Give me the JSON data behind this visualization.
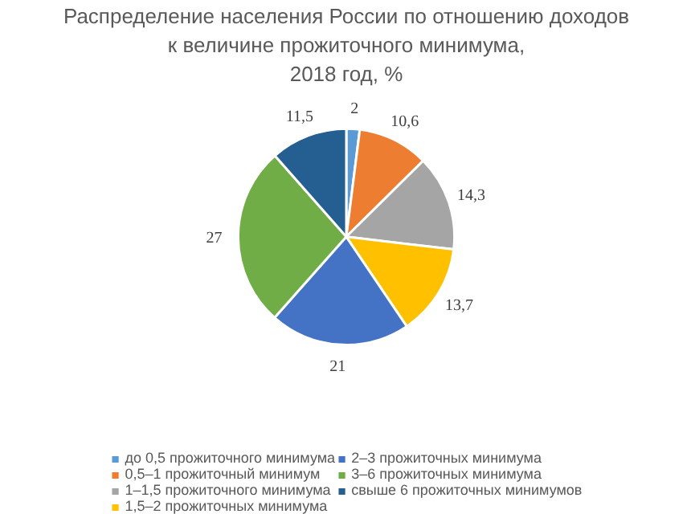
{
  "chart_data": {
    "type": "pie",
    "title": "Распределение населения России по отношению доходов\nк величине прожиточного минимума,\n2018 год, %",
    "categories": [
      "до 0,5 прожиточного минимума",
      "0,5–1 прожиточный минимум",
      "1–1,5 прожиточного минимума",
      "1,5–2 прожиточных минимума",
      "2–3 прожиточных минимума",
      "3–6 прожиточных минимума",
      "свыше 6 прожиточных минимумов"
    ],
    "values": [
      2,
      10.6,
      14.3,
      13.7,
      21,
      27,
      11.5
    ],
    "colors": [
      "#5b9bd5",
      "#ed7d31",
      "#a5a5a5",
      "#ffc000",
      "#4472c4",
      "#70ad47",
      "#255e91"
    ],
    "value_labels": [
      "2",
      "10,6",
      "14,3",
      "13,7",
      "21",
      "27",
      "11,5"
    ],
    "legend": "bottom"
  }
}
